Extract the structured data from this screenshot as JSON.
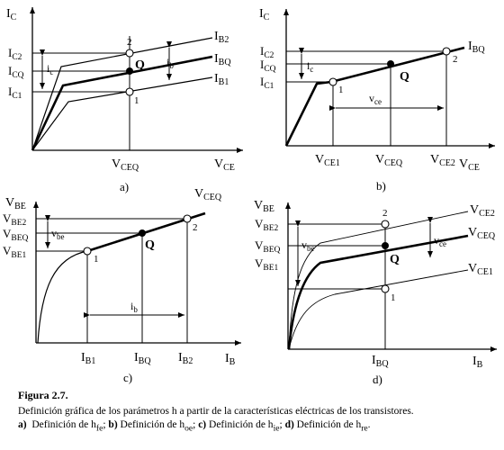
{
  "panel_a": {
    "y_axis": "I",
    "y_axis_sub": "C",
    "x_axis": "V",
    "x_axis_sub": "CE",
    "x_tick": "V",
    "x_tick_sub": "CEQ",
    "y_tick_high": "I",
    "y_tick_high_sub": "C2",
    "y_tick_mid": "I",
    "y_tick_mid_sub": "CQ",
    "y_tick_low": "I",
    "y_tick_low_sub": "C1",
    "curve_high": "I",
    "curve_high_sub": "B2",
    "curve_mid": "I",
    "curve_mid_sub": "BQ",
    "curve_low": "I",
    "curve_low_sub": "B1",
    "point_high": "2",
    "point_low": "1",
    "point_q": "Q",
    "delta_left": "i",
    "delta_left_sub": "c",
    "delta_right": "i",
    "delta_right_sub": "b",
    "panel_label": "a)"
  },
  "panel_b": {
    "y_axis": "I",
    "y_axis_sub": "C",
    "x_axis": "V",
    "x_axis_sub": "CE",
    "x_tick_1": "V",
    "x_tick_1_sub": "CE1",
    "x_tick_q": "V",
    "x_tick_q_sub": "CEQ",
    "x_tick_2": "V",
    "x_tick_2_sub": "CE2",
    "y_tick_high": "I",
    "y_tick_high_sub": "C2",
    "y_tick_mid": "I",
    "y_tick_mid_sub": "CQ",
    "y_tick_low": "I",
    "y_tick_low_sub": "C1",
    "curve": "I",
    "curve_sub": "BQ",
    "point_1": "1",
    "point_2": "2",
    "point_q": "Q",
    "delta_y": "i",
    "delta_y_sub": "c",
    "delta_x": "v",
    "delta_x_sub": "ce",
    "panel_label": "b)"
  },
  "panel_c": {
    "y_axis": "V",
    "y_axis_sub": "BE",
    "x_axis": "I",
    "x_axis_sub": "B",
    "curve": "V",
    "curve_sub": "CEQ",
    "y_tick_high": "V",
    "y_tick_high_sub": "BE2",
    "y_tick_mid": "V",
    "y_tick_mid_sub": "BEQ",
    "y_tick_low": "V",
    "y_tick_low_sub": "BE1",
    "x_tick_1": "I",
    "x_tick_1_sub": "B1",
    "x_tick_q": "I",
    "x_tick_q_sub": "BQ",
    "x_tick_2": "I",
    "x_tick_2_sub": "B2",
    "point_1": "1",
    "point_2": "2",
    "point_q": "Q",
    "delta_y": "v",
    "delta_y_sub": "be",
    "delta_x": "i",
    "delta_x_sub": "b",
    "panel_label": "c)"
  },
  "panel_d": {
    "y_axis": "V",
    "y_axis_sub": "BE",
    "x_axis": "I",
    "x_axis_sub": "B",
    "x_tick": "I",
    "x_tick_sub": "BQ",
    "y_tick_high": "V",
    "y_tick_high_sub": "BE2",
    "y_tick_mid": "V",
    "y_tick_mid_sub": "BEQ",
    "y_tick_low": "V",
    "y_tick_low_sub": "BE1",
    "curve_high": "V",
    "curve_high_sub": "CE2",
    "curve_mid": "V",
    "curve_mid_sub": "CEQ",
    "curve_low": "V",
    "curve_low_sub": "CE1",
    "point_high": "2",
    "point_low": "1",
    "point_q": "Q",
    "delta_left": "v",
    "delta_left_sub": "be",
    "delta_right": "v",
    "delta_right_sub": "ce",
    "panel_label": "d)"
  },
  "caption": {
    "title": "Figura   2.7.",
    "line1": "Definición gráfica de los parámetros h a partir de la características eléctricas de los transistores.",
    "a_label": "a)",
    "a_text": "Definición de h",
    "a_sub": "fe",
    "b_label": "b)",
    "b_text": "Definición de h",
    "b_sub": "oe",
    "c_label": "c)",
    "c_text": "Definición de h",
    "c_sub": "ie",
    "d_label": "d)",
    "d_text": "Definición de h",
    "d_sub": "re"
  }
}
